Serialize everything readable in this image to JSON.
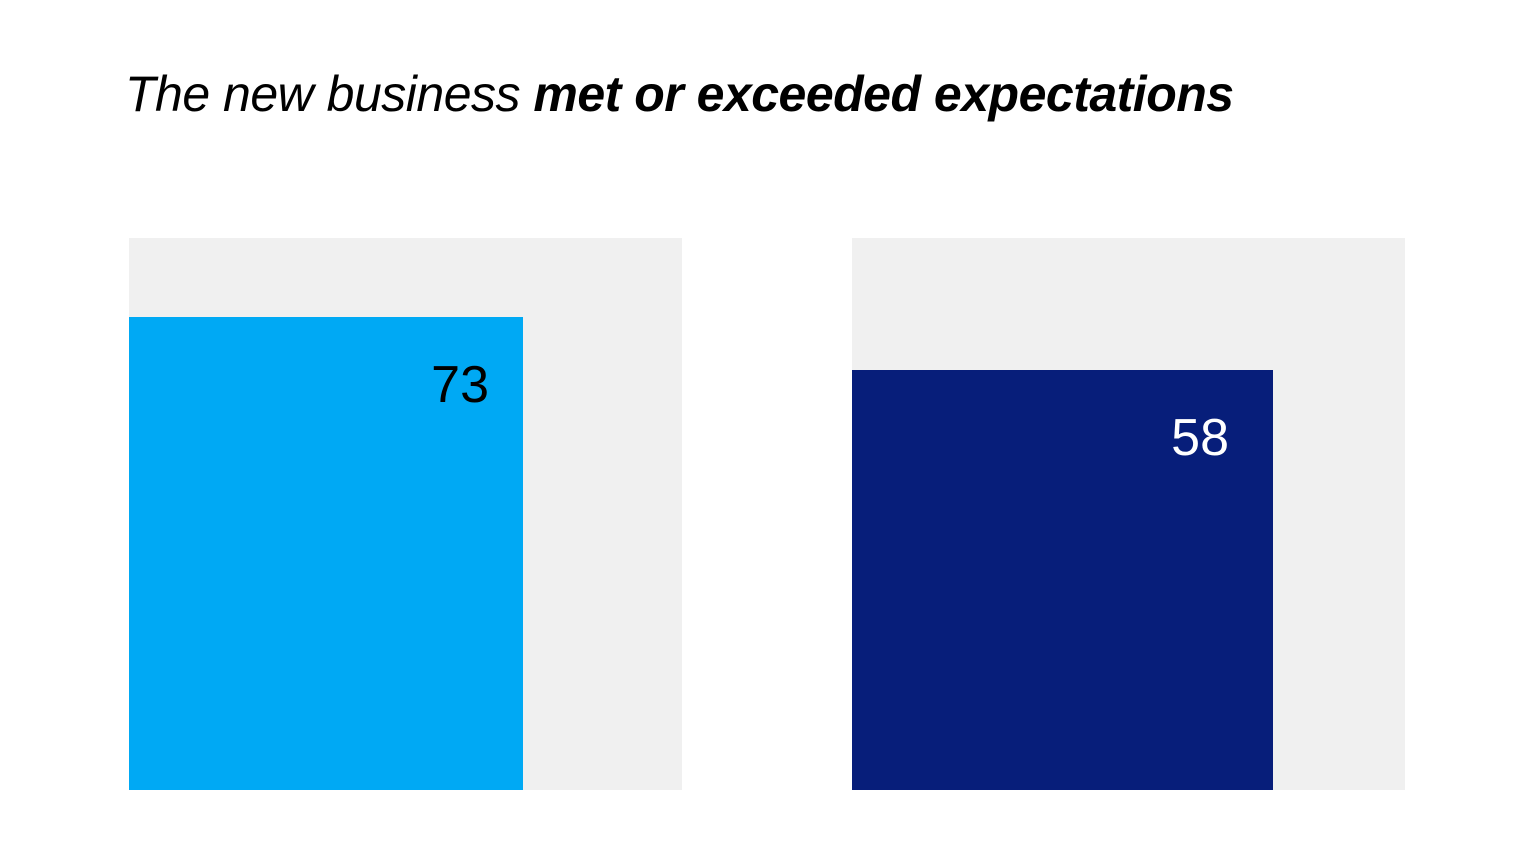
{
  "title": {
    "prefix": "The new business ",
    "emphasis": "met or exceeded expectations"
  },
  "chart_data": {
    "type": "bar",
    "title": "The new business met or exceeded expectations",
    "categories": [
      "",
      ""
    ],
    "values": [
      73,
      58
    ],
    "ylim": [
      0,
      100
    ],
    "grid": false,
    "legend": "none",
    "data_labels": [
      "73",
      "58"
    ],
    "colors": {
      "bars": [
        "#00a9f4",
        "#071e7a"
      ],
      "track": "#f0f0f0",
      "labels": [
        "#000000",
        "#ffffff"
      ]
    }
  }
}
